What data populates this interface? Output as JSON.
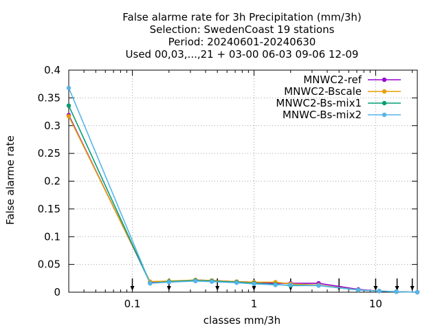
{
  "chart_data": {
    "type": "line",
    "title_lines": [
      "False alarme rate  for 3h Precipitation (mm/3h)",
      "Selection: SwedenCoast     19 stations",
      "Period: 20240601-20240630",
      "Used 00,03,...,21 + 03-00 06-03 09-06 12-09"
    ],
    "xlabel": "classes mm/3h",
    "ylabel": "False alarme rate",
    "xscale": "log",
    "xlim": [
      0.03,
      22
    ],
    "ylim": [
      0,
      0.4
    ],
    "x_ticks": [
      {
        "value": 0.1,
        "label": "0.1"
      },
      {
        "value": 1,
        "label": "1"
      },
      {
        "value": 10,
        "label": "10"
      }
    ],
    "y_ticks": [
      {
        "value": 0,
        "label": "0"
      },
      {
        "value": 0.05,
        "label": "0.05"
      },
      {
        "value": 0.1,
        "label": "0.1"
      },
      {
        "value": 0.15,
        "label": "0.15"
      },
      {
        "value": 0.2,
        "label": "0.2"
      },
      {
        "value": 0.25,
        "label": "0.25"
      },
      {
        "value": 0.3,
        "label": "0.3"
      },
      {
        "value": 0.35,
        "label": "0.35"
      },
      {
        "value": 0.4,
        "label": "0.4"
      }
    ],
    "threshold_arrows": [
      0.1,
      0.2,
      0.5,
      1,
      2,
      5,
      10,
      15,
      20
    ],
    "grid": true,
    "legend_position": "top-right",
    "x": [
      0.03,
      0.14,
      0.2,
      0.33,
      0.45,
      0.72,
      1.0,
      1.5,
      2.0,
      3.4,
      7.2,
      10.7,
      14.8,
      22
    ],
    "series": [
      {
        "name": "MNWC2-ref",
        "color": "#9400d3",
        "values": [
          0.319,
          0.018,
          0.019,
          0.022,
          0.021,
          0.019,
          0.018,
          0.016,
          0.016,
          0.016,
          0.005,
          0.002,
          0.001,
          0.0
        ]
      },
      {
        "name": "MNWC2-Bscale",
        "color": "#e69f00",
        "values": [
          0.317,
          0.019,
          0.02,
          0.022,
          0.021,
          0.019,
          0.018,
          0.018,
          0.015,
          0.013,
          0.004,
          0.002,
          0.001,
          0.0
        ]
      },
      {
        "name": "MNWC2-Bs-mix1",
        "color": "#009e73",
        "values": [
          0.336,
          0.016,
          0.019,
          0.021,
          0.02,
          0.018,
          0.016,
          0.014,
          0.012,
          0.012,
          0.004,
          0.002,
          0.001,
          0.0
        ]
      },
      {
        "name": "MNWC-Bs-mix2",
        "color": "#56b4e9",
        "values": [
          0.368,
          0.016,
          0.018,
          0.02,
          0.019,
          0.017,
          0.015,
          0.013,
          0.013,
          0.012,
          0.004,
          0.002,
          0.001,
          0.0
        ]
      }
    ]
  }
}
